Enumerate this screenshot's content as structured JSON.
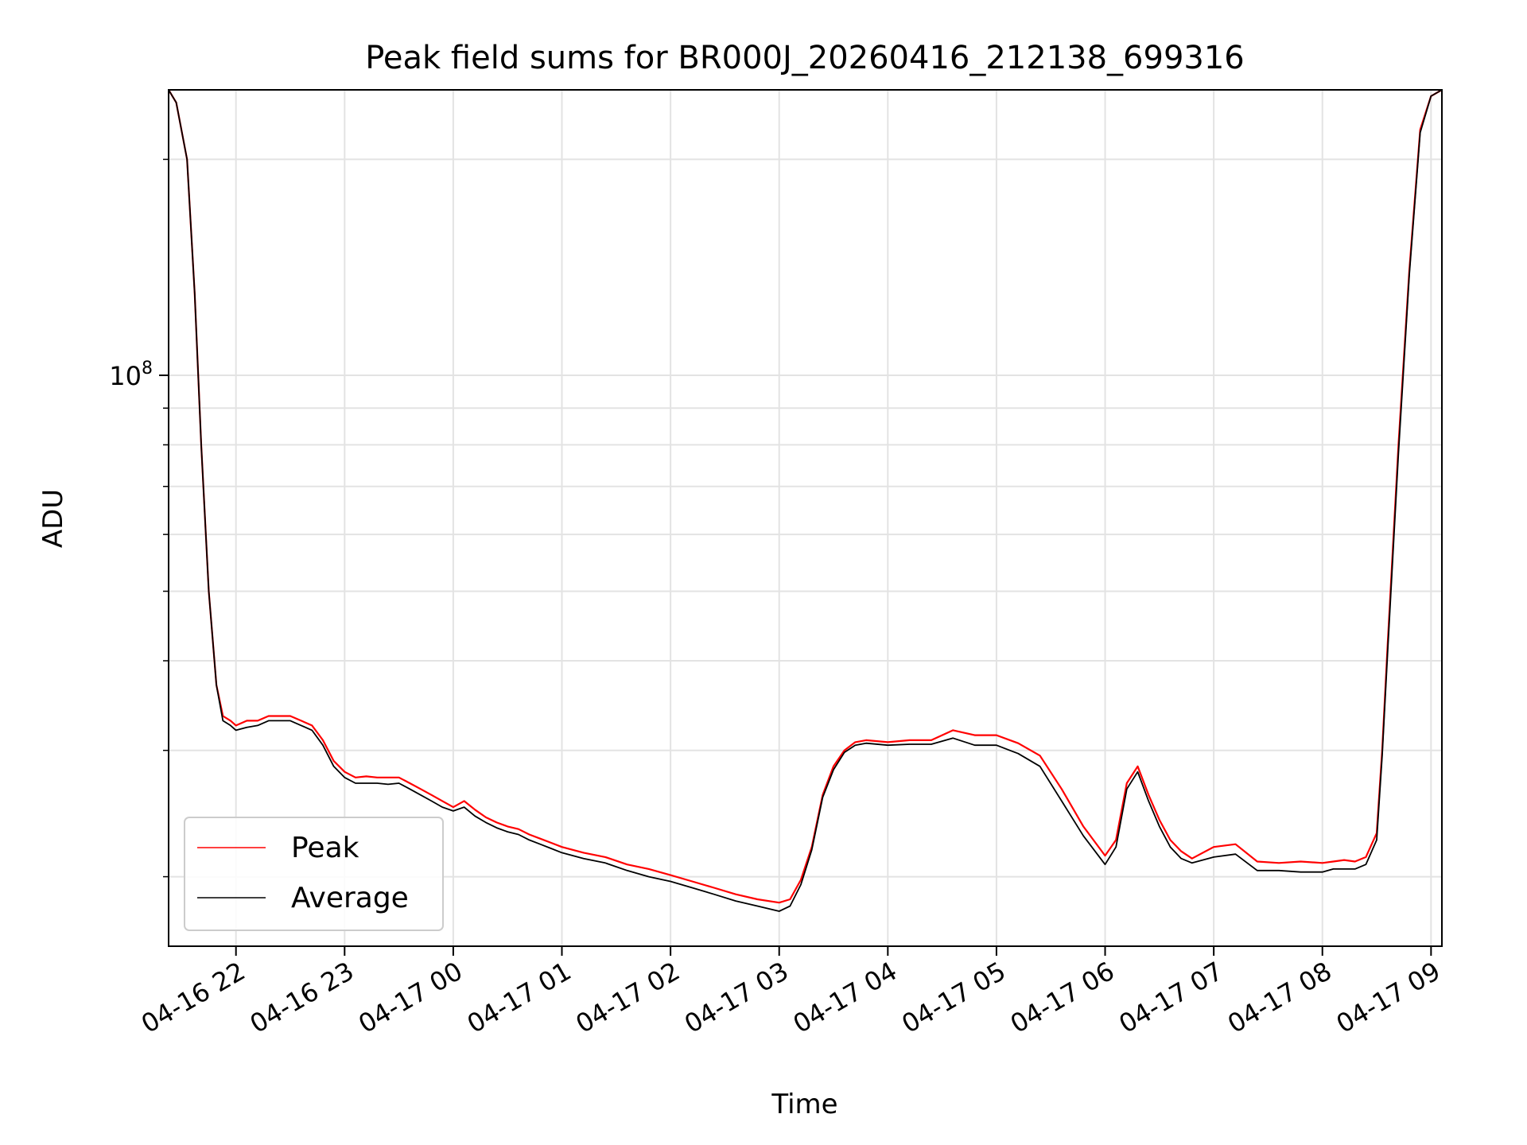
{
  "chart_data": {
    "type": "line",
    "title": "Peak field sums for BR000J_20260416_212138_699316",
    "xlabel": "Time",
    "ylabel": "ADU",
    "yscale": "log",
    "ylim": [
      16000000,
      250000000
    ],
    "xlim_hours": [
      21.38,
      33.1
    ],
    "x_ticks": [
      {
        "label": "04-16 22",
        "hour": 22
      },
      {
        "label": "04-16 23",
        "hour": 23
      },
      {
        "label": "04-17 00",
        "hour": 24
      },
      {
        "label": "04-17 01",
        "hour": 25
      },
      {
        "label": "04-17 02",
        "hour": 26
      },
      {
        "label": "04-17 03",
        "hour": 27
      },
      {
        "label": "04-17 04",
        "hour": 28
      },
      {
        "label": "04-17 05",
        "hour": 29
      },
      {
        "label": "04-17 06",
        "hour": 30
      },
      {
        "label": "04-17 07",
        "hour": 31
      },
      {
        "label": "04-17 08",
        "hour": 32
      },
      {
        "label": "04-17 09",
        "hour": 33
      }
    ],
    "y_major_ticks": [
      {
        "base": "10",
        "exponent": "8",
        "value": 100000000
      }
    ],
    "y_minor_ticks": [
      20000000,
      30000000,
      40000000,
      50000000,
      60000000,
      70000000,
      80000000,
      90000000,
      200000000
    ],
    "grid": true,
    "legend": {
      "position": "lower-left",
      "entries": [
        "Peak",
        "Average"
      ]
    },
    "series": [
      {
        "name": "Peak",
        "color": "#ff0000",
        "x": [
          21.38,
          21.45,
          21.55,
          21.62,
          21.68,
          21.75,
          21.82,
          21.88,
          21.95,
          22.0,
          22.1,
          22.2,
          22.3,
          22.4,
          22.5,
          22.6,
          22.7,
          22.8,
          22.9,
          23.0,
          23.1,
          23.2,
          23.3,
          23.4,
          23.5,
          23.6,
          23.7,
          23.8,
          23.9,
          24.0,
          24.1,
          24.2,
          24.3,
          24.4,
          24.5,
          24.6,
          24.7,
          24.8,
          24.9,
          25.0,
          25.2,
          25.4,
          25.6,
          25.8,
          26.0,
          26.2,
          26.4,
          26.6,
          26.8,
          27.0,
          27.1,
          27.2,
          27.3,
          27.4,
          27.5,
          27.6,
          27.7,
          27.8,
          28.0,
          28.2,
          28.4,
          28.6,
          28.8,
          29.0,
          29.2,
          29.4,
          29.6,
          29.8,
          30.0,
          30.1,
          30.2,
          30.3,
          30.4,
          30.5,
          30.6,
          30.7,
          30.8,
          31.0,
          31.2,
          31.4,
          31.6,
          31.8,
          32.0,
          32.1,
          32.2,
          32.3,
          32.4,
          32.5,
          32.55,
          32.6,
          32.7,
          32.8,
          32.9,
          33.0,
          33.1
        ],
        "values": [
          250000000,
          240000000,
          200000000,
          130000000,
          80000000,
          50000000,
          37000000,
          33500000,
          33000000,
          32500000,
          33000000,
          33000000,
          33500000,
          33500000,
          33500000,
          33000000,
          32500000,
          31000000,
          29000000,
          28000000,
          27500000,
          27600000,
          27500000,
          27500000,
          27500000,
          27000000,
          26500000,
          26000000,
          25500000,
          25000000,
          25500000,
          24800000,
          24200000,
          23800000,
          23500000,
          23300000,
          22900000,
          22600000,
          22300000,
          22000000,
          21600000,
          21300000,
          20800000,
          20500000,
          20100000,
          19700000,
          19300000,
          18900000,
          18600000,
          18400000,
          18600000,
          19800000,
          22000000,
          26000000,
          28500000,
          30000000,
          30800000,
          31000000,
          30800000,
          31000000,
          31000000,
          32000000,
          31500000,
          31500000,
          30700000,
          29500000,
          26500000,
          23500000,
          21400000,
          22500000,
          27000000,
          28500000,
          26000000,
          24000000,
          22500000,
          21700000,
          21200000,
          22000000,
          22200000,
          21000000,
          20900000,
          21000000,
          20900000,
          21000000,
          21100000,
          21000000,
          21300000,
          23000000,
          30000000,
          42000000,
          80000000,
          140000000,
          220000000,
          245000000,
          250000000
        ]
      },
      {
        "name": "Average",
        "color": "#000000",
        "x": [
          21.38,
          21.45,
          21.55,
          21.62,
          21.68,
          21.75,
          21.82,
          21.88,
          21.95,
          22.0,
          22.1,
          22.2,
          22.3,
          22.4,
          22.5,
          22.6,
          22.7,
          22.8,
          22.9,
          23.0,
          23.1,
          23.2,
          23.3,
          23.4,
          23.5,
          23.6,
          23.7,
          23.8,
          23.9,
          24.0,
          24.1,
          24.2,
          24.3,
          24.4,
          24.5,
          24.6,
          24.7,
          24.8,
          24.9,
          25.0,
          25.2,
          25.4,
          25.6,
          25.8,
          26.0,
          26.2,
          26.4,
          26.6,
          26.8,
          27.0,
          27.1,
          27.2,
          27.3,
          27.4,
          27.5,
          27.6,
          27.7,
          27.8,
          28.0,
          28.2,
          28.4,
          28.6,
          28.8,
          29.0,
          29.2,
          29.4,
          29.6,
          29.8,
          30.0,
          30.1,
          30.2,
          30.3,
          30.4,
          30.5,
          30.6,
          30.7,
          30.8,
          31.0,
          31.2,
          31.4,
          31.6,
          31.8,
          32.0,
          32.1,
          32.2,
          32.3,
          32.4,
          32.5,
          32.55,
          32.6,
          32.7,
          32.8,
          32.9,
          33.0,
          33.1
        ],
        "values": [
          250000000,
          240000000,
          200000000,
          130000000,
          80000000,
          50000000,
          37000000,
          33000000,
          32500000,
          32000000,
          32300000,
          32500000,
          33000000,
          33000000,
          33000000,
          32500000,
          32000000,
          30500000,
          28500000,
          27500000,
          27000000,
          27000000,
          27000000,
          26900000,
          27000000,
          26500000,
          26000000,
          25500000,
          25000000,
          24700000,
          25000000,
          24300000,
          23800000,
          23400000,
          23100000,
          22900000,
          22500000,
          22200000,
          21900000,
          21600000,
          21200000,
          20900000,
          20400000,
          20000000,
          19700000,
          19300000,
          18900000,
          18500000,
          18200000,
          17900000,
          18200000,
          19500000,
          21800000,
          25800000,
          28200000,
          29800000,
          30500000,
          30700000,
          30500000,
          30600000,
          30600000,
          31200000,
          30500000,
          30500000,
          29700000,
          28500000,
          25500000,
          22800000,
          20800000,
          22000000,
          26500000,
          28000000,
          25500000,
          23500000,
          22000000,
          21200000,
          20900000,
          21300000,
          21500000,
          20400000,
          20400000,
          20300000,
          20300000,
          20500000,
          20500000,
          20500000,
          20800000,
          22500000,
          29500000,
          41000000,
          78000000,
          138000000,
          218000000,
          245000000,
          250000000
        ]
      }
    ]
  }
}
